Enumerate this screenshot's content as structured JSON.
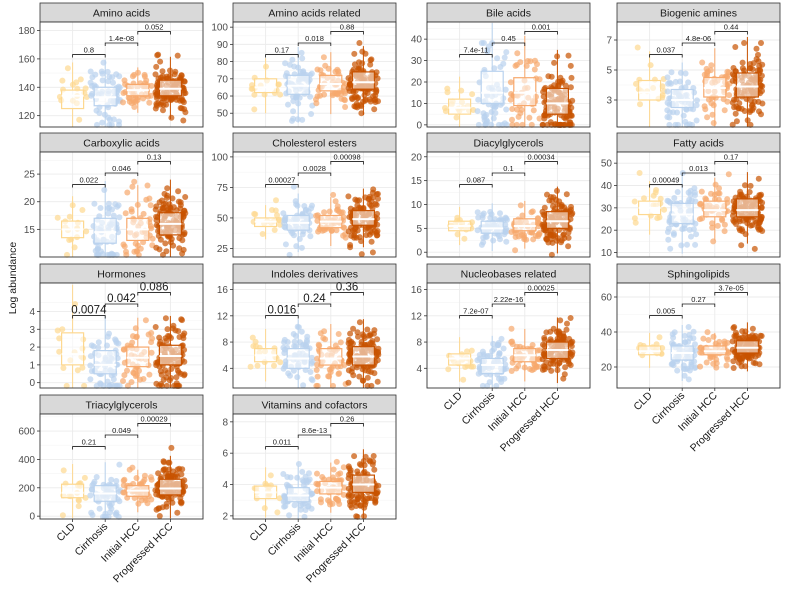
{
  "figure": {
    "y_axis_title": "Log abundance",
    "x_categories": [
      "CLD",
      "Cirrhosis",
      "Initial HCC",
      "Progressed HCC"
    ],
    "group_colors": [
      "#fdd890",
      "#b9d2ee",
      "#f7a86c",
      "#c85200"
    ]
  },
  "chart_data": [
    {
      "type": "boxplot",
      "title": "Amino acids",
      "ylim": [
        112,
        186
      ],
      "yticks": [
        120,
        140,
        160,
        180
      ],
      "boxes": [
        {
          "q1": 125,
          "median": 134,
          "q3": 138
        },
        {
          "q1": 127,
          "median": 133,
          "q3": 140
        },
        {
          "q1": 134,
          "median": 138,
          "q3": 142
        },
        {
          "q1": 134,
          "median": 139,
          "q3": 145
        }
      ],
      "n_points": [
        16,
        60,
        45,
        110
      ],
      "comparisons": [
        {
          "from": 0,
          "to": 1,
          "label": "0.8"
        },
        {
          "from": 1,
          "to": 2,
          "label": "1.4e-08"
        },
        {
          "from": 2,
          "to": 3,
          "label": "0.052"
        }
      ]
    },
    {
      "type": "boxplot",
      "title": "Amino acids related",
      "ylim": [
        42,
        103
      ],
      "yticks": [
        50,
        60,
        70,
        80,
        90,
        100
      ],
      "boxes": [
        {
          "q1": 62,
          "median": 65,
          "q3": 70
        },
        {
          "q1": 61,
          "median": 66,
          "q3": 72
        },
        {
          "q1": 63,
          "median": 67,
          "q3": 72
        },
        {
          "q1": 64,
          "median": 68,
          "q3": 74
        }
      ],
      "n_points": [
        16,
        60,
        45,
        110
      ],
      "comparisons": [
        {
          "from": 0,
          "to": 1,
          "label": "0.17"
        },
        {
          "from": 1,
          "to": 2,
          "label": "0.018"
        },
        {
          "from": 2,
          "to": 3,
          "label": "0.88"
        }
      ]
    },
    {
      "type": "boxplot",
      "title": "Bile acids",
      "ylim": [
        -1,
        48
      ],
      "yticks": [
        0,
        10,
        20,
        30,
        40
      ],
      "boxes": [
        {
          "q1": 5,
          "median": 8,
          "q3": 12
        },
        {
          "q1": 10,
          "median": 15,
          "q3": 25
        },
        {
          "q1": 9,
          "median": 15,
          "q3": 22
        },
        {
          "q1": 5,
          "median": 10,
          "q3": 17
        }
      ],
      "n_points": [
        16,
        60,
        45,
        110
      ],
      "comparisons": [
        {
          "from": 0,
          "to": 1,
          "label": "7.4e-11"
        },
        {
          "from": 1,
          "to": 2,
          "label": "0.45"
        },
        {
          "from": 2,
          "to": 3,
          "label": "0.001"
        }
      ]
    },
    {
      "type": "boxplot",
      "title": "Biogenic amines",
      "ylim": [
        1.2,
        8.2
      ],
      "yticks": [
        3,
        5,
        7
      ],
      "boxes": [
        {
          "q1": 3.0,
          "median": 3.5,
          "q3": 4.3
        },
        {
          "q1": 2.5,
          "median": 3.0,
          "q3": 3.7
        },
        {
          "q1": 3.2,
          "median": 3.8,
          "q3": 4.5
        },
        {
          "q1": 3.2,
          "median": 3.9,
          "q3": 4.8
        }
      ],
      "n_points": [
        16,
        60,
        45,
        110
      ],
      "comparisons": [
        {
          "from": 0,
          "to": 1,
          "label": "0.037"
        },
        {
          "from": 1,
          "to": 2,
          "label": "4.8e-06"
        },
        {
          "from": 2,
          "to": 3,
          "label": "0.44"
        }
      ]
    },
    {
      "type": "boxplot",
      "title": "Carboxylic acids",
      "ylim": [
        10,
        29
      ],
      "yticks": [
        15,
        20,
        25
      ],
      "boxes": [
        {
          "q1": 13.5,
          "median": 15,
          "q3": 16.5
        },
        {
          "q1": 12.5,
          "median": 14.5,
          "q3": 17
        },
        {
          "q1": 13,
          "median": 15,
          "q3": 17
        },
        {
          "q1": 14,
          "median": 16,
          "q3": 18
        }
      ],
      "n_points": [
        16,
        60,
        45,
        110
      ],
      "comparisons": [
        {
          "from": 0,
          "to": 1,
          "label": "0.022"
        },
        {
          "from": 1,
          "to": 2,
          "label": "0.046"
        },
        {
          "from": 2,
          "to": 3,
          "label": "0.13"
        }
      ]
    },
    {
      "type": "boxplot",
      "title": "Cholesterol esters",
      "ylim": [
        18,
        104
      ],
      "yticks": [
        25,
        50,
        75,
        100
      ],
      "boxes": [
        {
          "q1": 43,
          "median": 47,
          "q3": 50
        },
        {
          "q1": 40,
          "median": 46,
          "q3": 52
        },
        {
          "q1": 42,
          "median": 47,
          "q3": 52
        },
        {
          "q1": 44,
          "median": 49,
          "q3": 56
        }
      ],
      "n_points": [
        16,
        60,
        45,
        110
      ],
      "comparisons": [
        {
          "from": 0,
          "to": 1,
          "label": "0.00027"
        },
        {
          "from": 1,
          "to": 2,
          "label": "0.0028"
        },
        {
          "from": 2,
          "to": 3,
          "label": "0.00098"
        }
      ]
    },
    {
      "type": "boxplot",
      "title": "Diacylglycerols",
      "ylim": [
        -1,
        21
      ],
      "yticks": [
        0,
        5,
        10,
        15,
        20
      ],
      "boxes": [
        {
          "q1": 4.5,
          "median": 5.5,
          "q3": 6.5
        },
        {
          "q1": 4,
          "median": 5,
          "q3": 6.5
        },
        {
          "q1": 4.5,
          "median": 5.5,
          "q3": 7
        },
        {
          "q1": 5,
          "median": 6.5,
          "q3": 8.5
        }
      ],
      "n_points": [
        16,
        60,
        45,
        110
      ],
      "comparisons": [
        {
          "from": 0,
          "to": 1,
          "label": "0.087"
        },
        {
          "from": 1,
          "to": 2,
          "label": "0.1"
        },
        {
          "from": 2,
          "to": 3,
          "label": "0.00034"
        }
      ]
    },
    {
      "type": "boxplot",
      "title": "Fatty acids",
      "ylim": [
        8,
        55
      ],
      "yticks": [
        10,
        20,
        30,
        40,
        50
      ],
      "boxes": [
        {
          "q1": 27,
          "median": 30,
          "q3": 33
        },
        {
          "q1": 23,
          "median": 27,
          "q3": 32
        },
        {
          "q1": 26,
          "median": 29,
          "q3": 33
        },
        {
          "q1": 26,
          "median": 29,
          "q3": 34
        }
      ],
      "n_points": [
        16,
        60,
        45,
        110
      ],
      "comparisons": [
        {
          "from": 0,
          "to": 1,
          "label": "0.00049"
        },
        {
          "from": 1,
          "to": 2,
          "label": "0.013"
        },
        {
          "from": 2,
          "to": 3,
          "label": "0.17"
        }
      ]
    },
    {
      "type": "boxplot",
      "title": "Hormones",
      "ylim": [
        -0.3,
        5.6
      ],
      "yticks": [
        0,
        1,
        2,
        3,
        4
      ],
      "boxes": [
        {
          "q1": 1.0,
          "median": 1.6,
          "q3": 2.8
        },
        {
          "q1": 0.5,
          "median": 1.0,
          "q3": 1.8
        },
        {
          "q1": 0.9,
          "median": 1.4,
          "q3": 2.0
        },
        {
          "q1": 1.0,
          "median": 1.5,
          "q3": 2.1
        }
      ],
      "n_points": [
        16,
        60,
        45,
        110
      ],
      "comparisons": [
        {
          "from": 0,
          "to": 1,
          "label": "0.0074"
        },
        {
          "from": 1,
          "to": 2,
          "label": "0.042"
        },
        {
          "from": 2,
          "to": 3,
          "label": "0.086"
        }
      ]
    },
    {
      "type": "boxplot",
      "title": "Indoles derivatives",
      "ylim": [
        1,
        17
      ],
      "yticks": [
        4,
        8,
        12,
        16
      ],
      "boxes": [
        {
          "q1": 5,
          "median": 6,
          "q3": 7
        },
        {
          "q1": 4,
          "median": 5.5,
          "q3": 7
        },
        {
          "q1": 4.5,
          "median": 5.5,
          "q3": 7
        },
        {
          "q1": 4.5,
          "median": 5.8,
          "q3": 7.3
        }
      ],
      "n_points": [
        16,
        60,
        45,
        110
      ],
      "comparisons": [
        {
          "from": 0,
          "to": 1,
          "label": "0.016"
        },
        {
          "from": 1,
          "to": 2,
          "label": "0.24"
        },
        {
          "from": 2,
          "to": 3,
          "label": "0.36"
        }
      ]
    },
    {
      "type": "boxplot",
      "title": "Nucleobases related",
      "ylim": [
        1,
        17
      ],
      "yticks": [
        4,
        8,
        12,
        16
      ],
      "boxes": [
        {
          "q1": 4.5,
          "median": 5.5,
          "q3": 6.2
        },
        {
          "q1": 3.2,
          "median": 4.5,
          "q3": 5.5
        },
        {
          "q1": 5,
          "median": 6,
          "q3": 7
        },
        {
          "q1": 5.5,
          "median": 6.8,
          "q3": 8
        }
      ],
      "n_points": [
        16,
        60,
        45,
        110
      ],
      "comparisons": [
        {
          "from": 0,
          "to": 1,
          "label": "7.2e-07"
        },
        {
          "from": 1,
          "to": 2,
          "label": "2.22e-16"
        },
        {
          "from": 2,
          "to": 3,
          "label": "0.00025"
        }
      ]
    },
    {
      "type": "boxplot",
      "title": "Sphingolipids",
      "ylim": [
        8,
        68
      ],
      "yticks": [
        20,
        40,
        60
      ],
      "boxes": [
        {
          "q1": 27,
          "median": 29,
          "q3": 32
        },
        {
          "q1": 24,
          "median": 28,
          "q3": 32
        },
        {
          "q1": 27,
          "median": 29,
          "q3": 32
        },
        {
          "q1": 28,
          "median": 31,
          "q3": 35
        }
      ],
      "n_points": [
        16,
        60,
        45,
        110
      ],
      "comparisons": [
        {
          "from": 0,
          "to": 1,
          "label": "0.005"
        },
        {
          "from": 1,
          "to": 2,
          "label": "0.27"
        },
        {
          "from": 2,
          "to": 3,
          "label": "3.7e-05"
        }
      ]
    },
    {
      "type": "boxplot",
      "title": "Triacylglycerols",
      "ylim": [
        -20,
        720
      ],
      "yticks": [
        0,
        200,
        400,
        600
      ],
      "boxes": [
        {
          "q1": 130,
          "median": 165,
          "q3": 225
        },
        {
          "q1": 105,
          "median": 160,
          "q3": 215
        },
        {
          "q1": 140,
          "median": 180,
          "q3": 215
        },
        {
          "q1": 150,
          "median": 195,
          "q3": 260
        }
      ],
      "n_points": [
        16,
        60,
        45,
        110
      ],
      "comparisons": [
        {
          "from": 0,
          "to": 1,
          "label": "0.21"
        },
        {
          "from": 1,
          "to": 2,
          "label": "0.049"
        },
        {
          "from": 2,
          "to": 3,
          "label": "0.00029"
        }
      ]
    },
    {
      "type": "boxplot",
      "title": "Vitamins and cofactors",
      "ylim": [
        1.8,
        8.5
      ],
      "yticks": [
        2,
        4,
        6,
        8
      ],
      "boxes": [
        {
          "q1": 3.1,
          "median": 3.5,
          "q3": 3.9
        },
        {
          "q1": 2.9,
          "median": 3.3,
          "q3": 3.8
        },
        {
          "q1": 3.4,
          "median": 3.8,
          "q3": 4.2
        },
        {
          "q1": 3.5,
          "median": 4.0,
          "q3": 4.6
        }
      ],
      "n_points": [
        16,
        60,
        45,
        110
      ],
      "comparisons": [
        {
          "from": 0,
          "to": 1,
          "label": "0.011"
        },
        {
          "from": 1,
          "to": 2,
          "label": "8.6e-13"
        },
        {
          "from": 2,
          "to": 3,
          "label": "0.26"
        }
      ]
    }
  ]
}
